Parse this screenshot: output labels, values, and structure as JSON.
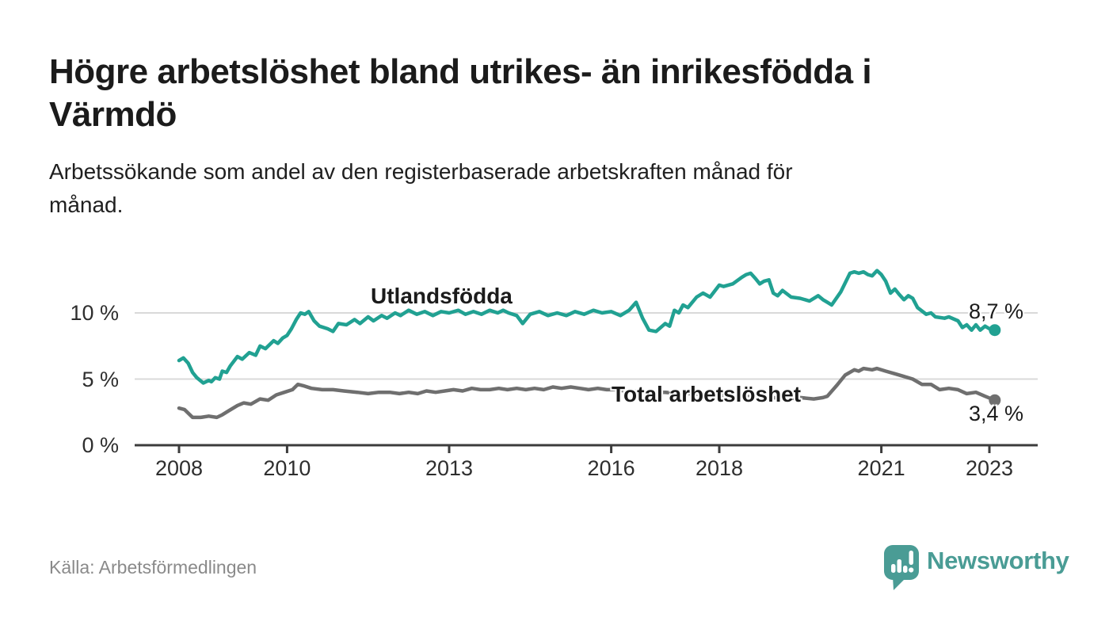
{
  "header": {
    "title_lines": [
      "Högre arbetslöshet bland utrikes- än inrikesfödda i",
      "Värmdö"
    ],
    "subtitle_lines": [
      "Arbetssökande som andel av den registerbaserade arbetskraften månad för",
      "månad."
    ]
  },
  "footer": {
    "source": "Källa: Arbetsförmedlingen",
    "brand_name": "Newsworthy",
    "brand_color": "#4a9c95",
    "brand_icon": "speech-bubble-bar-chart"
  },
  "chart_data": {
    "type": "line",
    "title": "Högre arbetslöshet bland utrikes- än inrikesfödda i Värmdö",
    "unit": "%",
    "x_axis": {
      "tick_years": [
        2008,
        2010,
        2013,
        2016,
        2018,
        2021,
        2023
      ],
      "range": [
        2007.2,
        2023.6
      ]
    },
    "y_axis": {
      "ticks": [
        {
          "value": 0,
          "label": "0 %"
        },
        {
          "value": 5,
          "label": "5 %"
        },
        {
          "value": 10,
          "label": "10 %"
        }
      ],
      "range": [
        0,
        13.5
      ],
      "gridlines": true
    },
    "colors": {
      "grid": "#d9d9d9",
      "axis": "#3c3c3c",
      "tick_text": "#2e2e2e"
    },
    "legend_position": "inline-labels",
    "series": [
      {
        "name": "Utlandsfödda",
        "color": "#21a192",
        "end_label": "8,7 %",
        "end_value": 8.7,
        "points": [
          [
            2008.0,
            6.4
          ],
          [
            2008.08,
            6.6
          ],
          [
            2008.17,
            6.2
          ],
          [
            2008.25,
            5.5
          ],
          [
            2008.33,
            5.1
          ],
          [
            2008.45,
            4.7
          ],
          [
            2008.55,
            4.9
          ],
          [
            2008.6,
            4.8
          ],
          [
            2008.67,
            5.1
          ],
          [
            2008.75,
            5.0
          ],
          [
            2008.8,
            5.6
          ],
          [
            2008.88,
            5.5
          ],
          [
            2008.95,
            6.0
          ],
          [
            2009.08,
            6.7
          ],
          [
            2009.17,
            6.5
          ],
          [
            2009.3,
            7.0
          ],
          [
            2009.42,
            6.8
          ],
          [
            2009.5,
            7.5
          ],
          [
            2009.6,
            7.3
          ],
          [
            2009.75,
            7.9
          ],
          [
            2009.83,
            7.7
          ],
          [
            2009.92,
            8.1
          ],
          [
            2010.0,
            8.3
          ],
          [
            2010.08,
            8.8
          ],
          [
            2010.17,
            9.5
          ],
          [
            2010.25,
            10.0
          ],
          [
            2010.33,
            9.9
          ],
          [
            2010.4,
            10.1
          ],
          [
            2010.5,
            9.4
          ],
          [
            2010.6,
            9.0
          ],
          [
            2010.75,
            8.8
          ],
          [
            2010.85,
            8.6
          ],
          [
            2010.95,
            9.2
          ],
          [
            2011.1,
            9.1
          ],
          [
            2011.25,
            9.5
          ],
          [
            2011.35,
            9.2
          ],
          [
            2011.5,
            9.7
          ],
          [
            2011.6,
            9.4
          ],
          [
            2011.75,
            9.8
          ],
          [
            2011.85,
            9.6
          ],
          [
            2012.0,
            10.0
          ],
          [
            2012.1,
            9.8
          ],
          [
            2012.25,
            10.2
          ],
          [
            2012.4,
            9.9
          ],
          [
            2012.55,
            10.1
          ],
          [
            2012.7,
            9.8
          ],
          [
            2012.85,
            10.1
          ],
          [
            2013.0,
            10.0
          ],
          [
            2013.17,
            10.2
          ],
          [
            2013.3,
            9.9
          ],
          [
            2013.45,
            10.1
          ],
          [
            2013.6,
            9.9
          ],
          [
            2013.75,
            10.2
          ],
          [
            2013.9,
            10.0
          ],
          [
            2014.0,
            10.2
          ],
          [
            2014.1,
            10.0
          ],
          [
            2014.25,
            9.8
          ],
          [
            2014.36,
            9.2
          ],
          [
            2014.5,
            9.9
          ],
          [
            2014.67,
            10.1
          ],
          [
            2014.83,
            9.8
          ],
          [
            2015.0,
            10.0
          ],
          [
            2015.17,
            9.8
          ],
          [
            2015.33,
            10.1
          ],
          [
            2015.5,
            9.9
          ],
          [
            2015.67,
            10.2
          ],
          [
            2015.83,
            10.0
          ],
          [
            2016.0,
            10.1
          ],
          [
            2016.17,
            9.8
          ],
          [
            2016.33,
            10.2
          ],
          [
            2016.46,
            10.8
          ],
          [
            2016.58,
            9.6
          ],
          [
            2016.7,
            8.7
          ],
          [
            2016.83,
            8.6
          ],
          [
            2017.0,
            9.2
          ],
          [
            2017.08,
            9.0
          ],
          [
            2017.17,
            10.2
          ],
          [
            2017.25,
            10.0
          ],
          [
            2017.33,
            10.6
          ],
          [
            2017.42,
            10.4
          ],
          [
            2017.58,
            11.2
          ],
          [
            2017.7,
            11.5
          ],
          [
            2017.83,
            11.2
          ],
          [
            2018.0,
            12.1
          ],
          [
            2018.08,
            12.0
          ],
          [
            2018.25,
            12.2
          ],
          [
            2018.42,
            12.7
          ],
          [
            2018.5,
            12.9
          ],
          [
            2018.58,
            13.0
          ],
          [
            2018.67,
            12.6
          ],
          [
            2018.75,
            12.2
          ],
          [
            2018.83,
            12.4
          ],
          [
            2018.92,
            12.5
          ],
          [
            2019.0,
            11.5
          ],
          [
            2019.08,
            11.3
          ],
          [
            2019.17,
            11.7
          ],
          [
            2019.33,
            11.2
          ],
          [
            2019.5,
            11.1
          ],
          [
            2019.67,
            10.9
          ],
          [
            2019.83,
            11.3
          ],
          [
            2019.92,
            11.0
          ],
          [
            2020.0,
            10.8
          ],
          [
            2020.08,
            10.6
          ],
          [
            2020.25,
            11.6
          ],
          [
            2020.42,
            13.0
          ],
          [
            2020.5,
            13.1
          ],
          [
            2020.58,
            13.0
          ],
          [
            2020.67,
            13.1
          ],
          [
            2020.75,
            12.9
          ],
          [
            2020.83,
            12.8
          ],
          [
            2020.92,
            13.2
          ],
          [
            2021.0,
            12.9
          ],
          [
            2021.08,
            12.4
          ],
          [
            2021.17,
            11.5
          ],
          [
            2021.25,
            11.8
          ],
          [
            2021.33,
            11.4
          ],
          [
            2021.42,
            11.0
          ],
          [
            2021.5,
            11.3
          ],
          [
            2021.58,
            11.1
          ],
          [
            2021.67,
            10.4
          ],
          [
            2021.83,
            9.9
          ],
          [
            2021.92,
            10.0
          ],
          [
            2022.0,
            9.7
          ],
          [
            2022.17,
            9.6
          ],
          [
            2022.25,
            9.7
          ],
          [
            2022.42,
            9.4
          ],
          [
            2022.5,
            8.9
          ],
          [
            2022.58,
            9.1
          ],
          [
            2022.67,
            8.7
          ],
          [
            2022.75,
            9.1
          ],
          [
            2022.83,
            8.7
          ],
          [
            2022.92,
            9.0
          ],
          [
            2023.0,
            8.8
          ],
          [
            2023.1,
            8.7
          ]
        ]
      },
      {
        "name": "Total arbetslöshet",
        "color": "#6f6f6f",
        "end_label": "3,4 %",
        "end_value": 3.4,
        "points": [
          [
            2008.0,
            2.8
          ],
          [
            2008.1,
            2.7
          ],
          [
            2008.25,
            2.1
          ],
          [
            2008.4,
            2.1
          ],
          [
            2008.55,
            2.2
          ],
          [
            2008.7,
            2.1
          ],
          [
            2008.8,
            2.3
          ],
          [
            2008.92,
            2.6
          ],
          [
            2009.08,
            3.0
          ],
          [
            2009.2,
            3.2
          ],
          [
            2009.33,
            3.1
          ],
          [
            2009.5,
            3.5
          ],
          [
            2009.65,
            3.4
          ],
          [
            2009.8,
            3.8
          ],
          [
            2009.95,
            4.0
          ],
          [
            2010.1,
            4.2
          ],
          [
            2010.2,
            4.6
          ],
          [
            2010.3,
            4.5
          ],
          [
            2010.45,
            4.3
          ],
          [
            2010.65,
            4.2
          ],
          [
            2010.85,
            4.2
          ],
          [
            2011.05,
            4.1
          ],
          [
            2011.3,
            4.0
          ],
          [
            2011.5,
            3.9
          ],
          [
            2011.7,
            4.0
          ],
          [
            2011.9,
            4.0
          ],
          [
            2012.08,
            3.9
          ],
          [
            2012.25,
            4.0
          ],
          [
            2012.42,
            3.9
          ],
          [
            2012.58,
            4.1
          ],
          [
            2012.75,
            4.0
          ],
          [
            2012.92,
            4.1
          ],
          [
            2013.08,
            4.2
          ],
          [
            2013.25,
            4.1
          ],
          [
            2013.42,
            4.3
          ],
          [
            2013.58,
            4.2
          ],
          [
            2013.75,
            4.2
          ],
          [
            2013.92,
            4.3
          ],
          [
            2014.08,
            4.2
          ],
          [
            2014.25,
            4.3
          ],
          [
            2014.42,
            4.2
          ],
          [
            2014.58,
            4.3
          ],
          [
            2014.75,
            4.2
          ],
          [
            2014.92,
            4.4
          ],
          [
            2015.08,
            4.3
          ],
          [
            2015.25,
            4.4
          ],
          [
            2015.42,
            4.3
          ],
          [
            2015.58,
            4.2
          ],
          [
            2015.75,
            4.3
          ],
          [
            2015.92,
            4.2
          ],
          [
            2016.08,
            4.2
          ],
          [
            2016.25,
            4.1
          ],
          [
            2016.5,
            4.1
          ],
          [
            2016.75,
            4.0
          ],
          [
            2017.0,
            4.0
          ],
          [
            2017.25,
            3.9
          ],
          [
            2017.5,
            3.9
          ],
          [
            2017.75,
            3.8
          ],
          [
            2018.0,
            3.8
          ],
          [
            2018.25,
            3.7
          ],
          [
            2018.5,
            3.7
          ],
          [
            2018.75,
            3.6
          ],
          [
            2019.0,
            3.6
          ],
          [
            2019.25,
            3.5
          ],
          [
            2019.5,
            3.6
          ],
          [
            2019.75,
            3.5
          ],
          [
            2019.92,
            3.6
          ],
          [
            2020.0,
            3.7
          ],
          [
            2020.17,
            4.5
          ],
          [
            2020.33,
            5.3
          ],
          [
            2020.5,
            5.7
          ],
          [
            2020.58,
            5.6
          ],
          [
            2020.67,
            5.8
          ],
          [
            2020.83,
            5.7
          ],
          [
            2020.92,
            5.8
          ],
          [
            2021.08,
            5.6
          ],
          [
            2021.25,
            5.4
          ],
          [
            2021.42,
            5.2
          ],
          [
            2021.58,
            5.0
          ],
          [
            2021.75,
            4.6
          ],
          [
            2021.92,
            4.6
          ],
          [
            2022.08,
            4.2
          ],
          [
            2022.25,
            4.3
          ],
          [
            2022.42,
            4.2
          ],
          [
            2022.58,
            3.9
          ],
          [
            2022.75,
            4.0
          ],
          [
            2022.92,
            3.7
          ],
          [
            2023.1,
            3.4
          ]
        ]
      }
    ]
  }
}
